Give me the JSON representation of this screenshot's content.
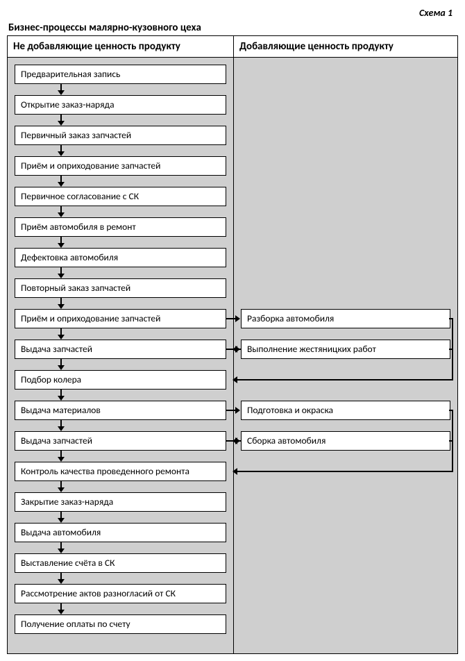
{
  "scheme_label": "Схема 1",
  "title": "Бизнес-процессы малярно-кузовного цеха",
  "columns": {
    "left_header": "Не добавляющие ценность продукту",
    "right_header": "Добавляющие ценность продукту"
  },
  "flow": {
    "type": "flowchart",
    "background_color": "#cfcfcf",
    "node_bg": "#ffffff",
    "border_color": "#000000",
    "font_size_pt": 11,
    "left_nodes": [
      "Предварительная запись",
      "Открытие заказ-наряда",
      "Первичный заказ запчастей",
      "Приём и оприходование запчастей",
      "Первичное согласование с СК",
      "Приём автомобиля в ремонт",
      "Дефектовка автомобиля",
      "Повторный заказ запчастей",
      "Приём и оприходование запчастей",
      "Выдача запчастей",
      "Подбор колера",
      "Выдача материалов",
      "Выдача запчастей",
      "Контроль качества проведенного ремонта",
      "Закрытие заказ-наряда",
      "Выдача автомобиля",
      "Выставление счёта в СК",
      "Рассмотрение актов разногласий от СК",
      "Получение оплаты по счету"
    ],
    "right_nodes": [
      {
        "aligned_left_index": 8,
        "label": "Разборка автомобиля",
        "returns_to_left_index": 9
      },
      {
        "aligned_left_index": 9,
        "label": "Выполнение жестяницких работ",
        "returns_to_left_index": 10
      },
      {
        "aligned_left_index": 11,
        "label": "Подготовка и окраска",
        "returns_to_left_index": 12
      },
      {
        "aligned_left_index": 12,
        "label": "Сборка автомобиля",
        "returns_to_left_index": 13
      }
    ]
  }
}
